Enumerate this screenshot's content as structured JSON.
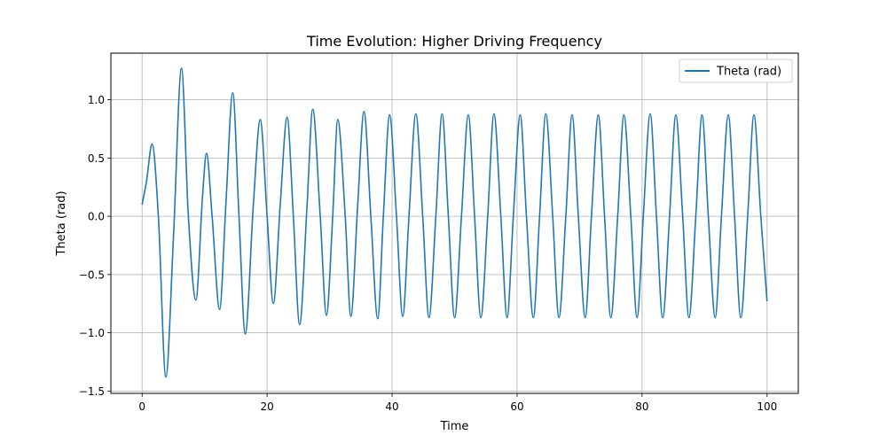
{
  "chart_data": {
    "type": "line",
    "title": "Time Evolution: Higher Driving Frequency",
    "xlabel": "Time",
    "ylabel": "Theta (rad)",
    "xlim": [
      -5,
      105
    ],
    "ylim": [
      -1.52,
      1.4
    ],
    "grid": true,
    "legend_position": "top-right",
    "x_ticks": [
      0,
      20,
      40,
      60,
      80,
      100
    ],
    "x_tick_labels": [
      "0",
      "20",
      "40",
      "60",
      "80",
      "100"
    ],
    "y_ticks": [
      -1.5,
      -1.0,
      -0.5,
      0.0,
      0.5,
      1.0
    ],
    "y_tick_labels": [
      "−1.5",
      "−1.0",
      "−0.5",
      "0.0",
      "0.5",
      "1.0"
    ],
    "series": [
      {
        "name": "Theta (rad)",
        "color": "#1f77b4",
        "x": [
          0,
          0.7,
          1.6,
          2.6,
          3.8,
          5.0,
          6.3,
          7.4,
          8.6,
          9.7,
          10.3,
          11.2,
          12.4,
          13.4,
          14.5,
          15.5,
          16.5,
          17.8,
          18.9,
          20.0,
          21.0,
          22.1,
          23.2,
          24.2,
          25.2,
          26.4,
          27.3,
          28.5,
          29.5,
          30.5,
          31.3,
          32.5,
          33.4,
          34.5,
          35.5,
          36.6,
          37.7,
          38.6,
          39.6,
          40.7,
          41.7,
          42.7,
          43.8,
          44.9,
          45.9,
          47.0,
          48.0,
          49.0,
          50.0,
          51.1,
          52.2,
          53.2,
          54.2,
          55.3,
          56.3,
          57.4,
          58.4,
          59.4,
          60.5,
          61.5,
          62.6,
          63.6,
          64.6,
          65.7,
          66.7,
          67.8,
          68.8,
          69.8,
          70.9,
          71.9,
          73.0,
          74.0,
          75.0,
          76.1,
          77.1,
          78.2,
          79.2,
          80.2,
          81.3,
          82.3,
          83.3,
          84.4,
          85.4,
          86.5,
          87.5,
          88.6,
          89.6,
          90.6,
          91.7,
          92.7,
          93.8,
          94.8,
          95.8,
          96.9,
          97.9,
          99.0,
          100
        ],
        "y": [
          0.1,
          0.3,
          0.62,
          0.0,
          -1.38,
          -0.2,
          1.27,
          0.0,
          -0.72,
          0.2,
          0.54,
          0.0,
          -0.8,
          0.1,
          1.06,
          0.0,
          -1.01,
          0.1,
          0.83,
          0.0,
          -0.75,
          0.1,
          0.85,
          0.0,
          -0.93,
          0.1,
          0.92,
          0.0,
          -0.85,
          0.0,
          0.83,
          0.0,
          -0.86,
          0.1,
          0.9,
          0.0,
          -0.88,
          0.0,
          0.87,
          0.0,
          -0.86,
          0.0,
          0.88,
          0.0,
          -0.87,
          0.0,
          0.88,
          0.0,
          -0.87,
          0.0,
          0.87,
          0.0,
          -0.87,
          0.0,
          0.88,
          0.0,
          -0.87,
          0.0,
          0.87,
          0.0,
          -0.87,
          0.0,
          0.88,
          0.0,
          -0.87,
          0.0,
          0.87,
          0.0,
          -0.87,
          0.0,
          0.87,
          0.0,
          -0.87,
          0.0,
          0.87,
          0.0,
          -0.87,
          0.0,
          0.88,
          0.0,
          -0.87,
          0.0,
          0.87,
          0.0,
          -0.87,
          0.0,
          0.87,
          0.0,
          -0.87,
          0.0,
          0.87,
          0.0,
          -0.87,
          0.0,
          0.87,
          0.0,
          -0.73
        ]
      }
    ]
  }
}
